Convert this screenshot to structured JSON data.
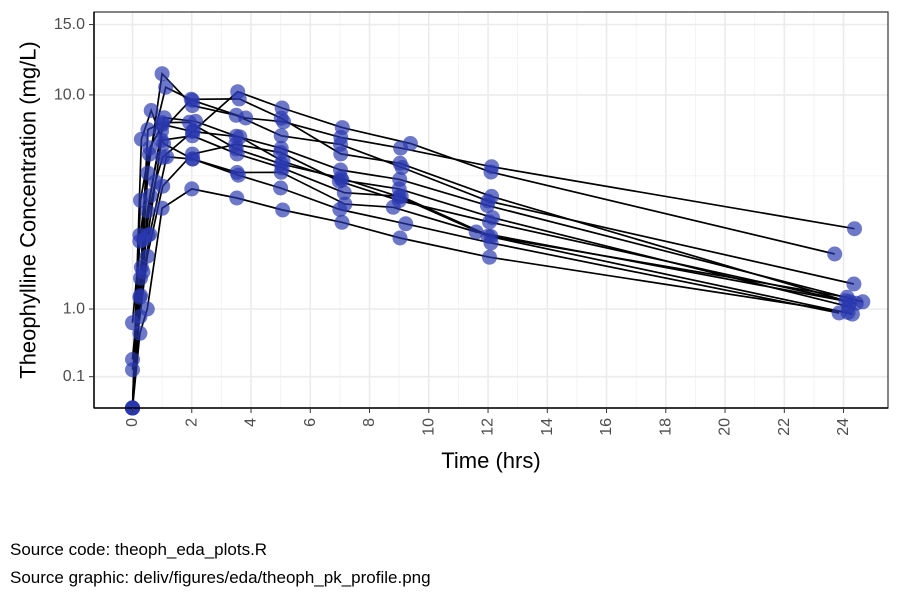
{
  "chart_data": {
    "type": "line",
    "xlabel": "Time (hrs)",
    "ylabel": "Theophylline Concentration (mg/L)",
    "xlim": [
      -1.3,
      25.5
    ],
    "ylim": [
      0,
      16
    ],
    "y_scale": "sqrt",
    "x_ticks": [
      0,
      2,
      4,
      6,
      8,
      10,
      12,
      14,
      16,
      18,
      20,
      22,
      24
    ],
    "y_ticks": [
      0.1,
      1.0,
      10.0,
      15.0
    ],
    "y_tick_labels": [
      "0.1",
      "1.0",
      "10.0",
      "15.0"
    ],
    "grid": true,
    "legend": "none",
    "point_color": "#2A38B0",
    "line_color": "#000000",
    "series": [
      {
        "x": [
          0,
          0.25,
          0.57,
          1.12,
          2.02,
          3.82,
          5.1,
          7.03,
          9.05,
          12.12,
          24.37
        ],
        "y": [
          0.74,
          2.84,
          6.57,
          10.5,
          9.66,
          8.58,
          8.36,
          7.47,
          6.89,
          5.94,
          3.28
        ]
      },
      {
        "x": [
          0,
          0.27,
          0.52,
          1.0,
          1.92,
          3.5,
          5.02,
          7.03,
          9.0,
          12.0,
          24.3
        ],
        "y": [
          0,
          1.72,
          7.91,
          8.31,
          8.33,
          6.85,
          6.08,
          5.4,
          4.55,
          3.01,
          0.9
        ]
      },
      {
        "x": [
          0,
          0.27,
          0.58,
          1.02,
          2.02,
          3.62,
          5.08,
          7.07,
          9.0,
          12.15,
          24.17
        ],
        "y": [
          0,
          4.4,
          6.9,
          8.2,
          7.8,
          7.5,
          6.2,
          5.3,
          4.9,
          3.7,
          1.05
        ]
      },
      {
        "x": [
          0,
          0.35,
          0.6,
          1.07,
          2.13,
          3.5,
          5.02,
          7.02,
          9.02,
          11.98,
          24.65
        ],
        "y": [
          0,
          1.89,
          4.6,
          8.6,
          8.38,
          7.54,
          6.88,
          5.78,
          5.33,
          4.19,
          1.15
        ]
      },
      {
        "x": [
          0,
          0.3,
          0.52,
          1.0,
          2.02,
          3.5,
          5.02,
          7.02,
          9.1,
          12.0,
          24.35
        ],
        "y": [
          0,
          2.02,
          5.63,
          11.4,
          9.33,
          8.74,
          7.56,
          7.09,
          5.9,
          4.37,
          1.57
        ]
      },
      {
        "x": [
          0,
          0.27,
          0.58,
          1.15,
          2.03,
          3.57,
          5.0,
          7.0,
          9.22,
          12.1,
          23.85
        ],
        "y": [
          0,
          1.29,
          3.08,
          6.44,
          6.32,
          5.53,
          4.94,
          4.02,
          3.46,
          2.78,
          0.92
        ]
      },
      {
        "x": [
          0,
          0.25,
          0.5,
          1.02,
          2.02,
          3.48,
          5.0,
          6.98,
          9.0,
          12.05,
          24.22
        ],
        "y": [
          0.15,
          0.85,
          2.35,
          5.02,
          6.58,
          7.09,
          6.66,
          5.25,
          4.39,
          3.53,
          1.15
        ]
      },
      {
        "x": [
          0,
          0.25,
          0.52,
          0.98,
          2.02,
          3.53,
          5.05,
          7.15,
          9.07,
          12.1,
          24.12
        ],
        "y": [
          0,
          3.05,
          3.05,
          7.31,
          7.56,
          6.59,
          5.88,
          4.73,
          4.57,
          3.0,
          1.25
        ]
      },
      {
        "x": [
          0,
          0.3,
          0.63,
          1.05,
          2.02,
          3.53,
          5.02,
          7.17,
          8.8,
          11.6,
          24.43
        ],
        "y": [
          0,
          7.37,
          9.03,
          7.14,
          6.33,
          5.66,
          5.67,
          4.24,
          4.11,
          3.16,
          1.12
        ]
      },
      {
        "x": [
          0,
          0.37,
          0.77,
          1.02,
          2.05,
          3.55,
          5.05,
          7.08,
          9.38,
          12.1,
          23.7
        ],
        "y": [
          0.24,
          2.89,
          5.22,
          6.41,
          7.83,
          10.21,
          9.18,
          8.02,
          7.14,
          5.68,
          2.42
        ]
      },
      {
        "x": [
          0,
          0.25,
          0.5,
          0.98,
          1.98,
          3.6,
          5.02,
          7.03,
          9.03,
          12.12,
          24.08
        ],
        "y": [
          0,
          1.25,
          3.96,
          7.82,
          9.72,
          9.75,
          8.57,
          6.59,
          6.11,
          4.57,
          1.17
        ]
      },
      {
        "x": [
          0,
          0.25,
          0.5,
          1.0,
          2.0,
          3.52,
          5.07,
          7.07,
          9.03,
          12.05,
          24.15
        ],
        "y": [
          0,
          0.57,
          1.0,
          4.07,
          4.9,
          4.5,
          4.0,
          3.52,
          2.95,
          2.32,
          0.93
        ]
      }
    ]
  },
  "footer": {
    "source_code": "Source code: theoph_eda_plots.R",
    "source_graphic": "Source graphic: deliv/figures/eda/theoph_pk_profile.png"
  }
}
